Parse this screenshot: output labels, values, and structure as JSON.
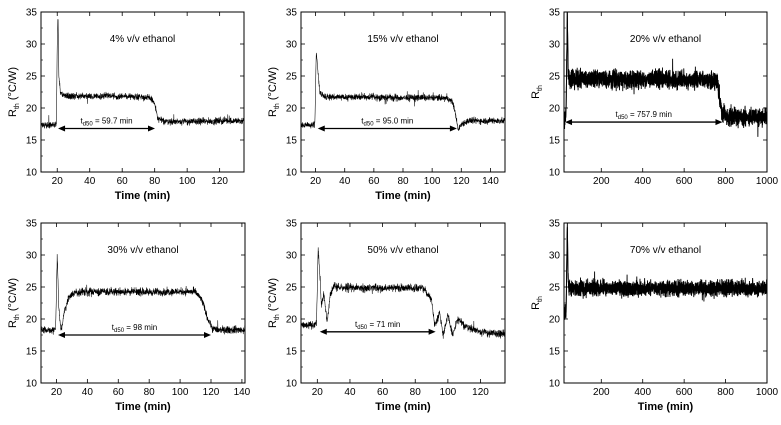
{
  "chart_data": [
    {
      "type": "line",
      "title": "4% v/v ethanol",
      "xlabel": "Time (min)",
      "ylabel": "R",
      "ylabel_sub": "th",
      "ylabel_unit": " (°C/W)",
      "xlim": [
        10,
        135
      ],
      "ylim": [
        10,
        35
      ],
      "xticks": [
        20,
        40,
        60,
        80,
        100,
        120
      ],
      "yticks": [
        10,
        15,
        20,
        25,
        30,
        35
      ],
      "x": [
        18,
        19.5,
        20,
        20.5,
        21,
        22,
        24,
        30,
        40,
        50,
        60,
        70,
        78,
        80,
        82,
        85,
        90,
        100,
        110,
        120,
        130,
        134
      ],
      "values": [
        17.3,
        17.5,
        30,
        34.5,
        25,
        22.3,
        22,
        21.8,
        21.8,
        21.9,
        21.8,
        21.8,
        21.5,
        20.6,
        18.3,
        18,
        17.9,
        17.9,
        17.9,
        18,
        18,
        18
      ],
      "noise": 0.7,
      "start": [
        10,
        17.3
      ],
      "annotation": {
        "label": "t",
        "sub": "d50",
        "text": " = 59.7 min",
        "x1": 20.5,
        "x2": 80.2,
        "y": 16.8
      }
    },
    {
      "type": "line",
      "title": "15% v/v ethanol",
      "xlabel": "Time (min)",
      "ylabel": "R",
      "ylabel_sub": "th",
      "ylabel_unit": " (°C/W)",
      "xlim": [
        10,
        150
      ],
      "ylim": [
        10,
        35
      ],
      "xticks": [
        20,
        40,
        60,
        80,
        100,
        120,
        140
      ],
      "yticks": [
        10,
        15,
        20,
        25,
        30,
        35
      ],
      "x": [
        18,
        19.5,
        20.5,
        21.5,
        23,
        26,
        40,
        60,
        80,
        100,
        110,
        114,
        116,
        118,
        120,
        125,
        130,
        140,
        150
      ],
      "values": [
        17.3,
        17.5,
        29,
        26,
        22.3,
        21.8,
        21.7,
        21.7,
        21.6,
        21.6,
        21.5,
        21,
        19,
        16.5,
        17.5,
        18,
        18,
        18,
        18
      ],
      "noise": 0.7,
      "start": [
        10,
        17.3
      ],
      "annotation": {
        "label": "t",
        "sub": "d50",
        "text": " = 95.0 min",
        "x1": 21.5,
        "x2": 117,
        "y": 16.8
      }
    },
    {
      "type": "line",
      "title": "20% v/v ethanol",
      "xlabel": "",
      "ylabel": "R",
      "ylabel_sub": "th",
      "ylabel_unit": "",
      "xlim": [
        20,
        1000
      ],
      "ylim": [
        10,
        35
      ],
      "xticks": [
        200,
        400,
        600,
        800,
        1000
      ],
      "yticks": [
        10,
        15,
        20,
        25,
        30,
        35
      ],
      "x": [
        20,
        30,
        36,
        40,
        50,
        100,
        200,
        400,
        600,
        700,
        760,
        780,
        800,
        850,
        900,
        1000
      ],
      "values": [
        18,
        19,
        35,
        25,
        24.5,
        24.5,
        24.5,
        24.5,
        24.4,
        24.4,
        24.2,
        19.5,
        18.7,
        18.6,
        18.6,
        18.6
      ],
      "noise": 1.8,
      "start": [
        20,
        18
      ],
      "annotation": {
        "label": "t",
        "sub": "d50",
        "text": " = 757.9 min",
        "x1": 25,
        "x2": 785,
        "y": 17.8
      }
    },
    {
      "type": "line",
      "title": "30% v/v ethanol",
      "xlabel": "Time (min)",
      "ylabel": "R",
      "ylabel_sub": "th",
      "ylabel_unit": " (°C/W)",
      "xlim": [
        10,
        142
      ],
      "ylim": [
        10,
        35
      ],
      "xticks": [
        20,
        40,
        60,
        80,
        100,
        120,
        140
      ],
      "yticks": [
        10,
        15,
        20,
        25,
        30,
        35
      ],
      "x": [
        18,
        19.5,
        20.5,
        21.5,
        23,
        25,
        28,
        32,
        40,
        60,
        80,
        100,
        110,
        114,
        118,
        121,
        125,
        135,
        142
      ],
      "values": [
        18.3,
        18.8,
        30,
        22,
        18,
        21,
        23.5,
        24.2,
        24.2,
        24.3,
        24.2,
        24.3,
        24.2,
        23,
        20,
        18.5,
        18.3,
        18.3,
        18.3
      ],
      "noise": 0.8,
      "start": [
        10,
        18.3
      ],
      "annotation": {
        "label": "t",
        "sub": "d50",
        "text": " = 98 min",
        "x1": 21,
        "x2": 120,
        "y": 17.5
      }
    },
    {
      "type": "line",
      "title": "50% v/v ethanol",
      "xlabel": "Time (min)",
      "ylabel": "R",
      "ylabel_sub": "th",
      "ylabel_unit": " (°C/W)",
      "xlim": [
        10,
        135
      ],
      "ylim": [
        10,
        35
      ],
      "xticks": [
        20,
        40,
        60,
        80,
        100,
        120
      ],
      "yticks": [
        10,
        15,
        20,
        25,
        30,
        35
      ],
      "x": [
        18,
        19.5,
        20.5,
        21.5,
        22.5,
        24,
        26,
        28,
        30,
        35,
        50,
        70,
        85,
        90,
        92,
        95,
        97,
        100,
        103,
        106,
        110,
        115,
        120,
        130,
        135
      ],
      "values": [
        19.1,
        19.3,
        31,
        27,
        22,
        24,
        19.5,
        24,
        25,
        25,
        24.8,
        24.9,
        24.8,
        23,
        19,
        21,
        17.5,
        20.5,
        17.5,
        20,
        19,
        18.5,
        18,
        17.7,
        17.6
      ],
      "noise": 0.8,
      "start": [
        10,
        19.1
      ],
      "annotation": {
        "label": "t",
        "sub": "d50",
        "text": " = 71 min",
        "x1": 21.5,
        "x2": 92.5,
        "y": 18.0
      }
    },
    {
      "type": "line",
      "title": "70% v/v ethanol",
      "xlabel": "Time (min)",
      "ylabel": "R",
      "ylabel_sub": "th",
      "ylabel_unit": "",
      "xlim": [
        20,
        1000
      ],
      "ylim": [
        10,
        35
      ],
      "xticks": [
        200,
        400,
        600,
        800,
        1000
      ],
      "yticks": [
        10,
        15,
        20,
        25,
        30,
        35
      ],
      "x": [
        20,
        30,
        36,
        40,
        45,
        60,
        200,
        400,
        600,
        800,
        1000
      ],
      "values": [
        21,
        21,
        35,
        26,
        25,
        24.8,
        24.8,
        24.8,
        24.8,
        24.8,
        24.8
      ],
      "noise": 1.6,
      "start": [
        20,
        21
      ],
      "annotation": null
    }
  ]
}
